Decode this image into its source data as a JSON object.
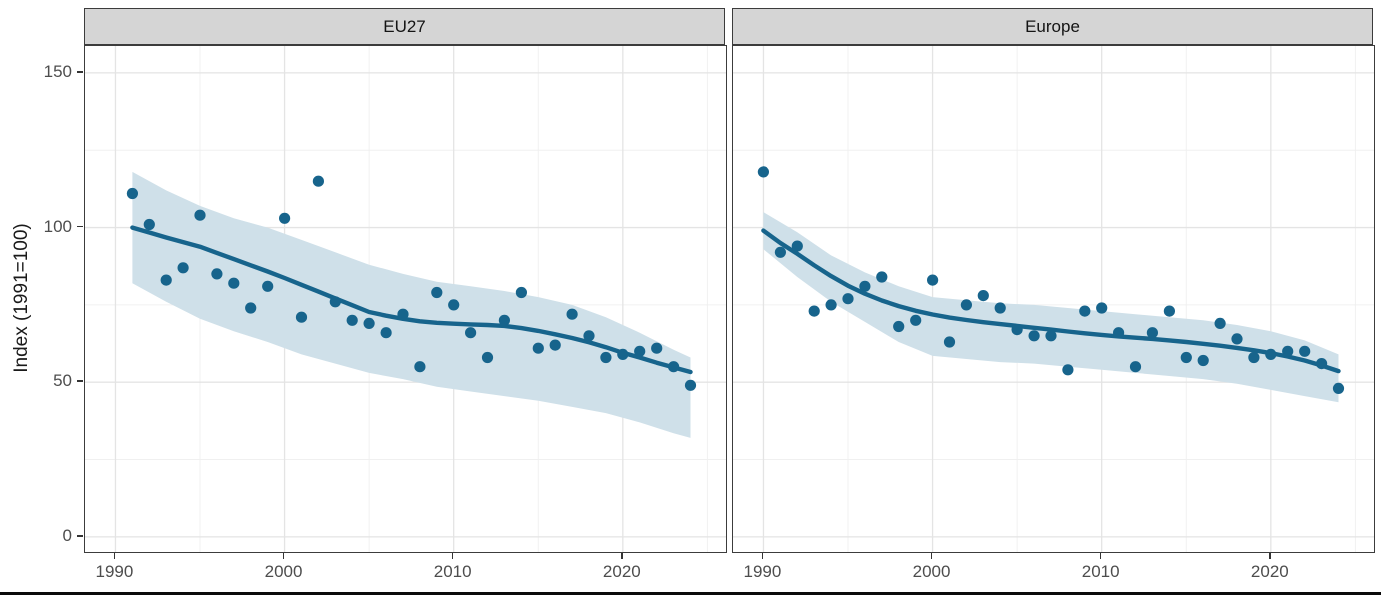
{
  "chart_data": {
    "type": "scatter",
    "title": "",
    "xlabel": "",
    "ylabel": "Index (1991=100)",
    "x_ticks": [
      1990,
      2000,
      2010,
      2020
    ],
    "x_minor_ticks": [
      1995,
      2005,
      2015,
      2025
    ],
    "y_ticks": [
      0,
      50,
      100,
      150
    ],
    "y_minor_ticks": [
      25,
      75,
      125
    ],
    "xlim": [
      1988.2,
      2026.1
    ],
    "ylim": [
      -4.9,
      158.7
    ],
    "grid": true,
    "legend": "none",
    "colors": {
      "point": "#17648c",
      "smooth_line": "#17648c",
      "band": "#cfe0e9",
      "strip_bg": "#d5d5d5",
      "panel_border": "#3c3c3c",
      "grid_major": "#e4e4e4",
      "grid_minor": "#f0f0f0",
      "tick_label": "#4d4d4d"
    },
    "panels": [
      {
        "label": "EU27",
        "series": [
          {
            "name": "observed-index",
            "type": "scatter",
            "x": [
              1991,
              1992,
              1993,
              1994,
              1995,
              1996,
              1997,
              1998,
              1999,
              2000,
              2001,
              2002,
              2003,
              2004,
              2005,
              2006,
              2007,
              2008,
              2009,
              2010,
              2011,
              2012,
              2013,
              2014,
              2015,
              2016,
              2017,
              2018,
              2019,
              2020,
              2021,
              2022,
              2023,
              2024
            ],
            "y": [
              111,
              101,
              83,
              87,
              104,
              85,
              82,
              74,
              81,
              103,
              71,
              115,
              76,
              70,
              69,
              66,
              72,
              55,
              79,
              75,
              66,
              58,
              70,
              79,
              61,
              62,
              72,
              65,
              58,
              59,
              60,
              61,
              55,
              49
            ]
          },
          {
            "name": "smooth-trend",
            "type": "line",
            "x": [
              1991,
              1992,
              1993,
              1994,
              1995,
              1996,
              1997,
              1998,
              1999,
              2000,
              2001,
              2002,
              2003,
              2004,
              2005,
              2006,
              2007,
              2008,
              2009,
              2010,
              2011,
              2012,
              2013,
              2014,
              2015,
              2016,
              2017,
              2018,
              2019,
              2020,
              2021,
              2022,
              2023,
              2024
            ],
            "y": [
              100,
              98.4,
              96.8,
              95.3,
              93.8,
              91.8,
              89.8,
              87.8,
              85.8,
              83.7,
              81.5,
              79.3,
              77.1,
              74.9,
              72.7,
              71.5,
              70.5,
              69.7,
              69.2,
              68.9,
              68.7,
              68.5,
              68.2,
              67.5,
              66.6,
              65.5,
              64.3,
              62.9,
              61.3,
              59.5,
              58,
              56.3,
              54.8,
              53.3
            ]
          },
          {
            "name": "confidence-band",
            "type": "area",
            "x": [
              1991,
              1993,
              1995,
              1997,
              1999,
              2001,
              2003,
              2005,
              2007,
              2009,
              2011,
              2013,
              2015,
              2017,
              2019,
              2021,
              2023,
              2024
            ],
            "y_lower": [
              82,
              76,
              70.5,
              66.5,
              63,
              59,
              56,
              53,
              51,
              48.5,
              47,
              45.5,
              44,
              42,
              40,
              37,
              33.5,
              32
            ],
            "y_upper": [
              118,
              112,
              107,
              103,
              100,
              96,
              92,
              88,
              85,
              82.5,
              81,
              79.5,
              77.5,
              75,
              71,
              66,
              60.5,
              58
            ]
          }
        ]
      },
      {
        "label": "Europe",
        "series": [
          {
            "name": "observed-index",
            "type": "scatter",
            "x": [
              1990,
              1991,
              1992,
              1993,
              1994,
              1995,
              1996,
              1997,
              1998,
              1999,
              2000,
              2001,
              2002,
              2003,
              2004,
              2005,
              2006,
              2007,
              2008,
              2009,
              2010,
              2011,
              2012,
              2013,
              2014,
              2015,
              2016,
              2017,
              2018,
              2019,
              2020,
              2021,
              2022,
              2023,
              2024
            ],
            "y": [
              118,
              92,
              94,
              73,
              75,
              77,
              81,
              84,
              68,
              70,
              83,
              63,
              75,
              78,
              74,
              67,
              65,
              65,
              54,
              73,
              74,
              66,
              55,
              66,
              73,
              58,
              57,
              69,
              64,
              58,
              59,
              60,
              60,
              56,
              48
            ]
          },
          {
            "name": "smooth-trend",
            "type": "line",
            "x": [
              1990,
              1991,
              1992,
              1993,
              1994,
              1995,
              1996,
              1997,
              1998,
              1999,
              2000,
              2001,
              2002,
              2003,
              2004,
              2005,
              2006,
              2007,
              2008,
              2009,
              2010,
              2011,
              2012,
              2013,
              2014,
              2015,
              2016,
              2017,
              2018,
              2019,
              2020,
              2021,
              2022,
              2023,
              2024
            ],
            "y": [
              99,
              95,
              91.5,
              87.8,
              84.3,
              81.2,
              78.6,
              76.4,
              74.6,
              73.1,
              71.9,
              70.9,
              70.1,
              69.4,
              68.8,
              68.2,
              67.6,
              67,
              66.4,
              65.8,
              65.3,
              64.8,
              64.4,
              64,
              63.5,
              63,
              62.4,
              61.8,
              61.1,
              60.3,
              59.4,
              58.3,
              57,
              55.4,
              53.6
            ]
          },
          {
            "name": "confidence-band",
            "type": "area",
            "x": [
              1990,
              1992,
              1994,
              1996,
              1998,
              2000,
              2002,
              2004,
              2006,
              2008,
              2010,
              2012,
              2014,
              2016,
              2018,
              2020,
              2022,
              2024
            ],
            "y_lower": [
              93,
              84,
              76,
              69.5,
              63,
              58.5,
              57.5,
              56.5,
              56,
              55,
              54,
              53,
              52,
              51,
              49.5,
              47.5,
              45.5,
              43.5
            ],
            "y_upper": [
              105,
              98.5,
              91,
              85.5,
              81,
              77.5,
              76.5,
              75.5,
              75,
              74,
              73,
              72,
              71,
              70,
              68.5,
              66.5,
              63.5,
              59
            ]
          }
        ]
      }
    ]
  }
}
